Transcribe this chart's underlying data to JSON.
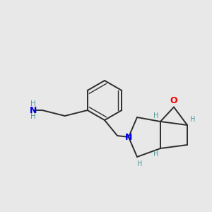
{
  "background_color": "#e8e8e8",
  "bond_color": "#2d2d2d",
  "nitrogen_color": "#0000ee",
  "oxygen_color": "#ee0000",
  "stereo_label_color": "#4a9a9a",
  "figsize": [
    3.0,
    3.0
  ],
  "dpi": 100,
  "xlim": [
    0,
    300
  ],
  "ylim": [
    0,
    300
  ]
}
